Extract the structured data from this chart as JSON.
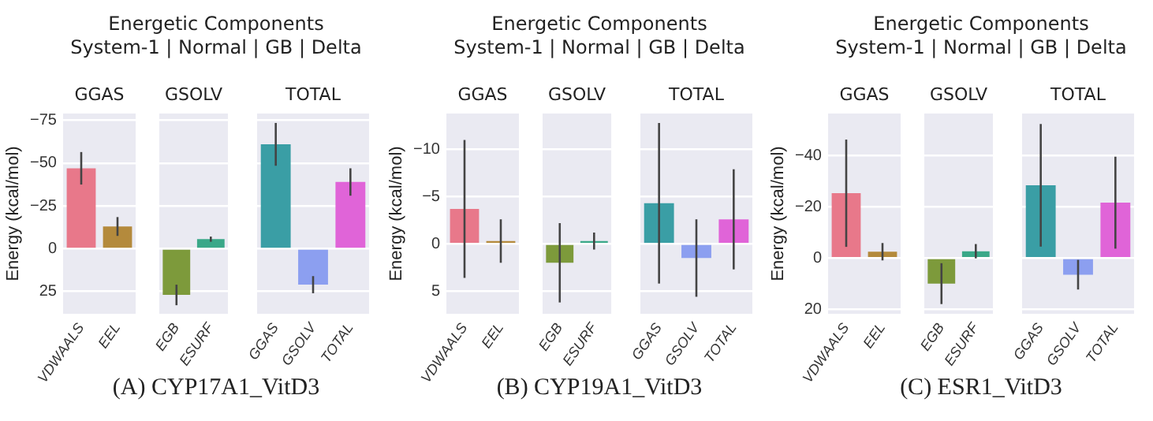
{
  "chart_data": [
    {
      "type": "bar",
      "title": "Energetic Components\nSystem-1 | Normal | GB | Delta",
      "subtitle": "GGAS",
      "ylabel": "Energy (kcal/mol)",
      "categories": [
        "VDWAALS",
        "EEL"
      ],
      "values": [
        -47,
        -13
      ],
      "errors": [
        9.5,
        5.5
      ],
      "colors": [
        "#e8788a",
        "#b48a3c"
      ],
      "ylim": [
        38,
        -79
      ],
      "yticks": [
        25,
        0,
        -25,
        -50,
        -75
      ],
      "grid": "y"
    },
    {
      "type": "bar",
      "subtitle": "GSOLV",
      "categories": [
        "EGB",
        "ESURF"
      ],
      "values": [
        27,
        -5.6
      ],
      "errors": [
        6,
        1.5
      ],
      "colors": [
        "#7d9a3b",
        "#3aa888"
      ],
      "ylim": [
        38,
        -79
      ],
      "yticks": [
        25,
        0,
        -25,
        -50,
        -75
      ],
      "grid": "y",
      "tick_labels": "x",
      "annotations": [
        "(A) CYP17A1_VitD3"
      ]
    },
    {
      "type": "bar",
      "subtitle": "TOTAL",
      "categories": [
        "GGAS",
        "GSOLV",
        "TOTAL"
      ],
      "values": [
        -61,
        21,
        -39
      ],
      "errors": [
        12.5,
        5,
        8
      ],
      "colors": [
        "#3a9ea5",
        "#8c9ff0",
        "#e064d8"
      ],
      "ylim": [
        38,
        -79
      ],
      "yticks": [
        25,
        0,
        -25,
        -50,
        -75
      ],
      "grid": "y",
      "tick_labels": "x"
    },
    {
      "type": "bar",
      "title": "Energetic Components\nSystem-1 | Normal | GB | Delta",
      "subtitle": "GGAS",
      "ylabel": "Energy (kcal/mol)",
      "categories": [
        "VDWAALS",
        "EEL"
      ],
      "values": [
        -3.7,
        -0.3
      ],
      "errors": [
        7.3,
        2.3
      ],
      "colors": [
        "#e8788a",
        "#b48a3c"
      ],
      "ylim": [
        7.4,
        -13.8
      ],
      "yticks": [
        5,
        0,
        -5,
        -10
      ],
      "grid": "y"
    },
    {
      "type": "bar",
      "subtitle": "GSOLV",
      "categories": [
        "EGB",
        "ESURF"
      ],
      "values": [
        2,
        -0.3
      ],
      "errors": [
        4.2,
        0.9
      ],
      "colors": [
        "#7d9a3b",
        "#3aa888"
      ],
      "ylim": [
        7.4,
        -13.8
      ],
      "yticks": [
        5,
        0,
        -5,
        -10
      ],
      "grid": "y",
      "tick_labels": "x",
      "annotations": [
        "(B) CYP19A1_VitD3"
      ]
    },
    {
      "type": "bar",
      "subtitle": "TOTAL",
      "categories": [
        "GGAS",
        "GSOLV",
        "TOTAL"
      ],
      "values": [
        -4.3,
        1.5,
        -2.6
      ],
      "errors": [
        8.5,
        4.1,
        5.3
      ],
      "colors": [
        "#3a9ea5",
        "#8c9ff0",
        "#e064d8"
      ],
      "ylim": [
        7.4,
        -13.8
      ],
      "yticks": [
        5,
        0,
        -5,
        -10
      ],
      "grid": "y",
      "tick_labels": "x"
    },
    {
      "type": "bar",
      "title": "Energetic Components\nSystem-1 | Normal | GB | Delta",
      "subtitle": "GGAS",
      "ylabel": "Energy (kcal/mol)",
      "categories": [
        "VDWAALS",
        "EEL"
      ],
      "values": [
        -25.4,
        -2.5
      ],
      "errors": [
        21,
        3.4
      ],
      "colors": [
        "#e8788a",
        "#b48a3c"
      ],
      "ylim": [
        21.8,
        -56.6
      ],
      "yticks": [
        20,
        0,
        -20,
        -40
      ],
      "grid": "y"
    },
    {
      "type": "bar",
      "subtitle": "GSOLV",
      "categories": [
        "EGB",
        "ESURF"
      ],
      "values": [
        10,
        -2.7
      ],
      "errors": [
        8,
        2.8
      ],
      "colors": [
        "#7d9a3b",
        "#3aa888"
      ],
      "ylim": [
        21.8,
        -56.6
      ],
      "yticks": [
        20,
        0,
        -20,
        -40
      ],
      "grid": "y",
      "tick_labels": "x",
      "annotations": [
        "(C) ESR1_VitD3"
      ]
    },
    {
      "type": "bar",
      "subtitle": "TOTAL",
      "categories": [
        "GGAS",
        "GSOLV",
        "TOTAL"
      ],
      "values": [
        -28.5,
        6.5,
        -21.7
      ],
      "errors": [
        24,
        5.8,
        18
      ],
      "colors": [
        "#3a9ea5",
        "#8c9ff0",
        "#e064d8"
      ],
      "ylim": [
        21.8,
        -56.6
      ],
      "yticks": [
        20,
        0,
        -20,
        -40
      ],
      "grid": "y",
      "tick_labels": "x"
    }
  ]
}
